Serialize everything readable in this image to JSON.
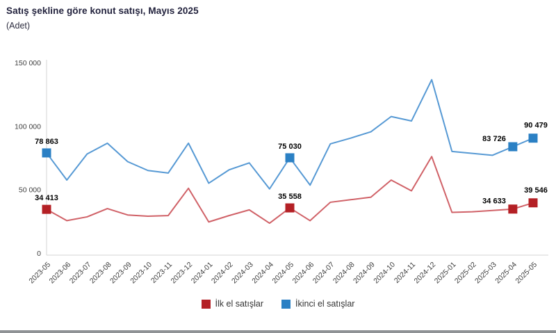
{
  "header": {
    "title": "Satış şekline göre konut satışı, Mayıs 2025",
    "subtitle": "(Adet)",
    "title_color": "#21213c"
  },
  "legend": {
    "items": [
      {
        "label": "İlk el satışlar",
        "color": "#b42025"
      },
      {
        "label": "İkinci el satışlar",
        "color": "#2b80c4"
      }
    ]
  },
  "colors": {
    "axis_line": "#d6d6d6",
    "tick_text": "#3d3d3d",
    "data_label_text": "#000000",
    "bottom_bar": "#8f9295"
  },
  "chart_data": {
    "type": "line",
    "title": "Satış şekline göre konut satışı, Mayıs 2025",
    "xlabel": "",
    "ylabel": "Adet",
    "ylim": [
      0,
      150000
    ],
    "grid": false,
    "legend_position": "bottom",
    "y_ticks": [
      {
        "value": 0,
        "label": "0"
      },
      {
        "value": 50000,
        "label": "50 000"
      },
      {
        "value": 100000,
        "label": "100 000"
      },
      {
        "value": 150000,
        "label": "150 000"
      }
    ],
    "categories": [
      "2023-05",
      "2023-06",
      "2023-07",
      "2023-08",
      "2023-09",
      "2023-10",
      "2023-11",
      "2023-12",
      "2024-01",
      "2024-02",
      "2024-03",
      "2024-04",
      "2024-05",
      "2024-06",
      "2024-07",
      "2024-08",
      "2024-09",
      "2024-10",
      "2024-11",
      "2024-12",
      "2025-01",
      "2025-02",
      "2025-03",
      "2025-04",
      "2025-05"
    ],
    "series": [
      {
        "name": "İkinci el satışlar",
        "line_color": "#5699d4",
        "marker_color": "#2b80c4",
        "values": [
          78863,
          57500,
          78000,
          86500,
          72000,
          65000,
          63000,
          86500,
          55000,
          65500,
          71000,
          50500,
          75030,
          53500,
          86000,
          90500,
          95500,
          107500,
          104000,
          136500,
          80000,
          78500,
          77000,
          83726,
          90479
        ],
        "labeled_points": [
          {
            "index": 0,
            "text": "78 863",
            "anchor": "middle",
            "dx": 0,
            "dy": -13
          },
          {
            "index": 12,
            "text": "75 030",
            "anchor": "middle",
            "dx": 0,
            "dy": -13
          },
          {
            "index": 23,
            "text": "83 726",
            "anchor": "end",
            "dx": -10,
            "dy": -8
          },
          {
            "index": 24,
            "text": "90 479",
            "anchor": "middle",
            "dx": 4,
            "dy": -15
          }
        ]
      },
      {
        "name": "İlk el satışlar",
        "line_color": "#d06167",
        "marker_color": "#b42025",
        "values": [
          34413,
          25500,
          28500,
          35000,
          30000,
          29000,
          29500,
          51000,
          24500,
          29500,
          34000,
          23500,
          35558,
          25500,
          40000,
          42000,
          44000,
          57500,
          49000,
          76000,
          32000,
          32500,
          33500,
          34633,
          39546
        ],
        "labeled_points": [
          {
            "index": 0,
            "text": "34 413",
            "anchor": "middle",
            "dx": 0,
            "dy": -13
          },
          {
            "index": 12,
            "text": "35 558",
            "anchor": "middle",
            "dx": 0,
            "dy": -13
          },
          {
            "index": 23,
            "text": "34 633",
            "anchor": "end",
            "dx": -10,
            "dy": -8
          },
          {
            "index": 24,
            "text": "39 546",
            "anchor": "middle",
            "dx": 4,
            "dy": -15
          }
        ]
      }
    ]
  }
}
